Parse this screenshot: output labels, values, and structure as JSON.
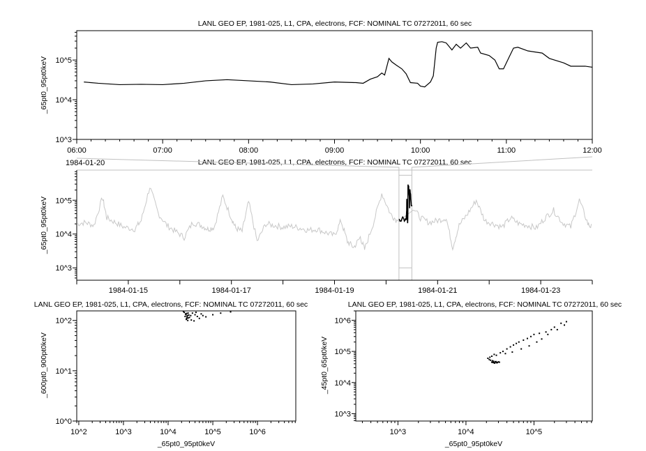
{
  "chart_data": [
    {
      "type": "line",
      "title": "LANL GEO EP, 1981-025, L1, CPA, electrons, FCF: NOMINAL TC 07272011, 60 sec",
      "ylabel": "_65pt0_95pt0keV",
      "xlabel": "",
      "x_date_label": "1984-01-20",
      "y_scale": "log",
      "ylim": [
        1000,
        550000
      ],
      "xlim": [
        "1984-01-20T06:00",
        "1984-01-20T12:00"
      ],
      "x_ticks": [
        "06:00",
        "07:00",
        "08:00",
        "09:00",
        "10:00",
        "11:00",
        "12:00"
      ],
      "y_ticks": [
        "10^3",
        "10^4",
        "10^5"
      ],
      "color": "#000000",
      "series": [
        {
          "x": [
            "06:05",
            "06:15",
            "06:30",
            "06:45",
            "07:00",
            "07:15",
            "07:30",
            "07:45",
            "08:00",
            "08:15",
            "08:30",
            "08:45",
            "09:00",
            "09:15",
            "09:20",
            "09:25",
            "09:30",
            "09:33",
            "09:35",
            "09:38",
            "09:40",
            "09:43",
            "09:47",
            "09:50",
            "09:53",
            "09:58",
            "10:00",
            "10:03",
            "10:07",
            "10:09",
            "10:11",
            "10:12",
            "10:15",
            "10:18",
            "10:22",
            "10:25",
            "10:28",
            "10:32",
            "10:35",
            "10:40",
            "10:42",
            "10:48",
            "10:52",
            "10:55",
            "10:58",
            "11:02",
            "11:05",
            "11:08",
            "11:15",
            "11:25",
            "11:30",
            "11:40",
            "11:45",
            "11:55",
            "12:00"
          ],
          "y": [
            28000,
            26000,
            24000,
            24500,
            24000,
            26000,
            30000,
            32000,
            30000,
            28000,
            24000,
            25000,
            28000,
            27000,
            26000,
            33000,
            38000,
            47000,
            42000,
            110000,
            90000,
            75000,
            60000,
            45000,
            27000,
            26000,
            22000,
            21000,
            28000,
            40000,
            200000,
            280000,
            290000,
            270000,
            180000,
            250000,
            200000,
            270000,
            200000,
            210000,
            150000,
            130000,
            100000,
            60000,
            60000,
            120000,
            200000,
            210000,
            170000,
            150000,
            110000,
            85000,
            70000,
            70000,
            66000
          ]
        }
      ]
    },
    {
      "type": "line",
      "title": "LANL GEO EP, 1981-025, L1, CPA, electrons, FCF: NOMINAL TC 07272011, 60 sec",
      "ylabel": "_65pt0_95pt0keV",
      "y_scale": "log",
      "ylim": [
        430,
        780000
      ],
      "xlim": [
        "1984-01-14",
        "1984-01-24"
      ],
      "x_ticks": [
        "1984-01-15",
        "1984-01-17",
        "1984-01-19",
        "1984-01-21",
        "1984-01-23"
      ],
      "y_ticks": [
        "10^3",
        "10^4",
        "10^5"
      ],
      "color": "#c8c8c8",
      "highlight_color": "#000000",
      "highlight_range": [
        "1984-01-20T06:00",
        "1984-01-20T12:00"
      ],
      "series": [
        {
          "x": [
            "01-14T00",
            "01-14T04",
            "01-14T08",
            "01-14T12",
            "01-14T14",
            "01-14T18",
            "01-14T22",
            "01-15T03",
            "01-15T06",
            "01-15T10",
            "01-15T14",
            "01-15T18",
            "01-15T22",
            "01-16T02",
            "01-16T06",
            "01-16T10",
            "01-16T13",
            "01-16T16",
            "01-16T20",
            "01-17T00",
            "01-17T02",
            "01-17T05",
            "01-17T08",
            "01-17T12",
            "01-17T16",
            "01-17T20",
            "01-18T00",
            "01-18T04",
            "01-18T08",
            "01-18T12",
            "01-18T16",
            "01-18T20",
            "01-19T00",
            "01-19T03",
            "01-19T06",
            "01-19T09",
            "01-19T12",
            "01-19T14",
            "01-19T18",
            "01-19T22",
            "01-20T02",
            "01-20T05",
            "01-20T12",
            "01-20T16",
            "01-20T20",
            "01-21T00",
            "01-21T04",
            "01-21T07",
            "01-21T10",
            "01-21T14",
            "01-21T18",
            "01-21T22",
            "01-22T02",
            "01-22T06",
            "01-22T10",
            "01-22T14",
            "01-22T18",
            "01-22T22",
            "01-23T02",
            "01-23T06",
            "01-23T10",
            "01-23T14",
            "01-23T18",
            "01-23T22",
            "01-24T00"
          ],
          "y": [
            20000,
            22000,
            18000,
            120000,
            30000,
            22000,
            16000,
            14000,
            25000,
            250000,
            40000,
            18000,
            12000,
            8000,
            22000,
            18000,
            14000,
            16000,
            130000,
            30000,
            15000,
            12000,
            90000,
            6000,
            20000,
            18000,
            16000,
            17000,
            15000,
            13000,
            14000,
            11000,
            9000,
            25000,
            6000,
            4000,
            8000,
            3500,
            20000,
            160000,
            40000,
            25000,
            66000,
            30000,
            22000,
            25000,
            30000,
            4000,
            18000,
            40000,
            100000,
            25000,
            20000,
            16000,
            30000,
            20000,
            18000,
            15000,
            30000,
            50000,
            22000,
            16000,
            100000,
            20000,
            15000
          ]
        }
      ]
    },
    {
      "type": "scatter",
      "title": "LANL GEO EP, 1981-025, L1, CPA, electrons, FCF: NOMINAL TC 07272011, 60 sec",
      "xlabel": "_65pt0_95pt0keV",
      "ylabel": "_600pt0_900pt0keV",
      "x_scale": "log",
      "y_scale": "log",
      "xlim": [
        90,
        7200000
      ],
      "ylim": [
        1,
        155
      ],
      "x_ticks": [
        "10^2",
        "10^3",
        "10^4",
        "10^5",
        "10^6"
      ],
      "y_ticks": [
        "10^0",
        "10^1",
        "10^2"
      ],
      "color": "#000000",
      "points": {
        "x": [
          24000,
          25000,
          26000,
          27000,
          28000,
          25500,
          26500,
          24500,
          27500,
          29000,
          23000,
          30000,
          32000,
          35000,
          40000,
          45000,
          50000,
          60000,
          70000,
          38000,
          42000,
          33000,
          28000,
          26000,
          22000,
          55000,
          100000,
          150000,
          250000
        ],
        "y": [
          120,
          130,
          110,
          125,
          140,
          105,
          118,
          135,
          100,
          128,
          145,
          115,
          125,
          140,
          130,
          120,
          110,
          125,
          118,
          98,
          145,
          102,
          112,
          138,
          150,
          135,
          130,
          140,
          148
        ]
      }
    },
    {
      "type": "scatter",
      "title": "LANL GEO EP, 1981-025, L1, CPA, electrons, FCF: NOMINAL TC 07272011, 60 sec",
      "xlabel": "_65pt0_95pt0keV",
      "ylabel": "_45pt0_65pt0keV",
      "x_scale": "log",
      "y_scale": "log",
      "xlim": [
        240,
        720000
      ],
      "ylim": [
        580,
        2000000
      ],
      "x_ticks": [
        "10^3",
        "10^4",
        "10^5"
      ],
      "y_ticks": [
        "10^3",
        "10^4",
        "10^5",
        "10^6"
      ],
      "color": "#000000",
      "points": {
        "x": [
          24000,
          25000,
          26000,
          27000,
          28000,
          29000,
          30000,
          31000,
          25500,
          26500,
          27500,
          28500,
          24500,
          23000,
          22000,
          21000,
          22500,
          24000,
          26000,
          28000,
          32000,
          35000,
          40000,
          45000,
          50000,
          55000,
          60000,
          70000,
          80000,
          90000,
          100000,
          120000,
          150000,
          180000,
          200000,
          250000,
          300000,
          280000,
          220000,
          160000,
          130000,
          110000,
          85000,
          65000,
          48000,
          38000
        ],
        "y": [
          45000,
          44000,
          43000,
          46000,
          45000,
          44000,
          46000,
          45000,
          48000,
          42000,
          47000,
          43000,
          50000,
          52000,
          55000,
          60000,
          65000,
          70000,
          80000,
          75000,
          90000,
          100000,
          120000,
          140000,
          160000,
          180000,
          200000,
          230000,
          260000,
          300000,
          350000,
          380000,
          420000,
          500000,
          600000,
          800000,
          900000,
          700000,
          500000,
          350000,
          250000,
          200000,
          150000,
          120000,
          95000,
          85000
        ]
      }
    }
  ]
}
